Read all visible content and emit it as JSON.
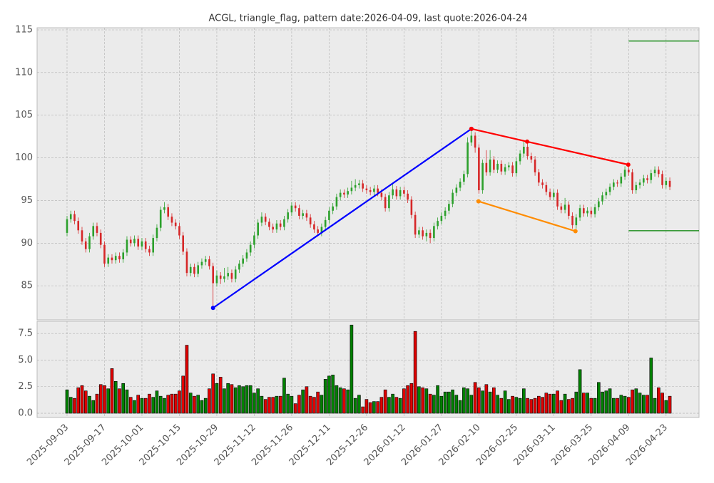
{
  "chart_data": {
    "type": "candlestick",
    "title": "ACGL, triangle_flag, pattern date:2026-04-09, last quote:2026-04-24",
    "categories": [
      "2025-09-03",
      null,
      null,
      null,
      null,
      null,
      null,
      null,
      null,
      null,
      "2025-09-17",
      null,
      null,
      null,
      null,
      null,
      null,
      null,
      null,
      null,
      "2025-10-01",
      null,
      null,
      null,
      null,
      null,
      null,
      null,
      null,
      null,
      "2025-10-15",
      null,
      null,
      null,
      null,
      null,
      null,
      null,
      null,
      null,
      "2025-10-29",
      null,
      null,
      null,
      null,
      null,
      null,
      null,
      null,
      null,
      "2025-11-12",
      null,
      null,
      null,
      null,
      null,
      null,
      null,
      null,
      null,
      "2025-11-26",
      null,
      null,
      null,
      null,
      null,
      null,
      null,
      null,
      null,
      "2025-12-11",
      null,
      null,
      null,
      null,
      null,
      null,
      null,
      null,
      null,
      "2025-12-26",
      null,
      null,
      null,
      null,
      null,
      null,
      null,
      null,
      null,
      "2026-01-12",
      null,
      null,
      null,
      null,
      null,
      null,
      null,
      null,
      null,
      "2026-01-27",
      null,
      null,
      null,
      null,
      null,
      null,
      null,
      null,
      null,
      "2026-02-10",
      null,
      null,
      null,
      null,
      null,
      null,
      null,
      null,
      null,
      "2026-02-25",
      null,
      null,
      null,
      null,
      null,
      null,
      null,
      null,
      null,
      "2026-03-11",
      null,
      null,
      null,
      null,
      null,
      null,
      null,
      null,
      null,
      "2026-03-25",
      null,
      null,
      null,
      null,
      null,
      null,
      null,
      null,
      null,
      "2026-04-09",
      null,
      null,
      null,
      null,
      null,
      null,
      null,
      null,
      null,
      "2026-04-23",
      null
    ],
    "open": [
      91.2,
      92.8,
      93.4,
      92.6,
      91.5,
      90.2,
      89.3,
      90.8,
      92.0,
      91.2,
      89.8,
      87.6,
      88.3,
      88.0,
      88.5,
      88.1,
      88.9,
      90.4,
      90.0,
      90.5,
      89.6,
      90.2,
      89.3,
      88.9,
      90.6,
      91.8,
      93.9,
      94.2,
      93.1,
      92.4,
      92.0,
      90.9,
      89.0,
      86.5,
      87.2,
      86.4,
      87.4,
      87.8,
      88.1,
      87.3,
      85.3,
      86.2,
      85.8,
      86.1,
      86.5,
      85.8,
      86.9,
      87.6,
      88.2,
      88.9,
      89.8,
      90.9,
      92.4,
      93.1,
      92.5,
      91.9,
      91.6,
      92.3,
      91.9,
      92.8,
      93.6,
      94.4,
      94.1,
      93.2,
      93.5,
      93.0,
      92.2,
      91.6,
      91.2,
      91.9,
      92.7,
      93.8,
      94.3,
      95.4,
      95.9,
      95.7,
      96.1,
      96.5,
      96.8,
      97.0,
      96.4,
      96.2,
      96.0,
      96.4,
      95.9,
      95.4,
      94.1,
      95.6,
      96.3,
      95.5,
      96.2,
      95.8,
      95.1,
      93.3,
      91.0,
      91.5,
      90.8,
      91.2,
      90.6,
      92.0,
      92.6,
      93.2,
      93.8,
      94.6,
      95.9,
      96.5,
      97.2,
      98.1,
      101.8,
      102.6,
      101.2,
      96.2,
      99.4,
      98.3,
      99.8,
      98.6,
      99.3,
      98.4,
      98.9,
      99.1,
      98.2,
      99.6,
      100.5,
      101.3,
      100.2,
      99.8,
      98.3,
      97.1,
      96.8,
      96.0,
      95.4,
      95.9,
      94.3,
      93.9,
      94.5,
      93.2,
      92.1,
      93.0,
      94.1,
      93.5,
      93.8,
      93.4,
      94.2,
      94.9,
      95.6,
      96.0,
      96.6,
      97.1,
      97.0,
      97.8,
      98.6,
      98.3,
      96.2,
      96.8,
      97.1,
      97.6,
      97.4,
      98.2,
      98.6,
      98.1,
      96.8,
      97.3
    ],
    "high": [
      93.2,
      93.8,
      93.8,
      93.0,
      91.9,
      90.6,
      91.2,
      92.4,
      92.4,
      91.6,
      90.2,
      88.7,
      88.7,
      88.9,
      88.9,
      89.3,
      90.8,
      90.8,
      90.9,
      90.9,
      90.6,
      90.6,
      89.7,
      91.0,
      92.2,
      94.3,
      94.8,
      94.6,
      93.5,
      92.8,
      92.4,
      91.3,
      89.4,
      87.6,
      87.6,
      87.8,
      88.2,
      88.5,
      88.5,
      87.7,
      86.8,
      86.6,
      87.1,
      87.2,
      86.9,
      87.3,
      88.0,
      88.6,
      89.3,
      90.2,
      91.3,
      92.8,
      93.6,
      93.5,
      92.9,
      92.3,
      92.7,
      92.7,
      93.2,
      94.0,
      94.8,
      94.8,
      94.5,
      93.9,
      93.9,
      93.4,
      92.6,
      92.0,
      92.3,
      93.1,
      94.2,
      94.7,
      95.8,
      96.3,
      96.3,
      96.5,
      97.3,
      97.5,
      97.4,
      97.4,
      96.8,
      96.6,
      96.8,
      96.8,
      96.3,
      95.8,
      96.0,
      96.9,
      96.7,
      96.6,
      96.6,
      96.2,
      95.5,
      93.7,
      91.9,
      91.9,
      91.6,
      91.6,
      92.4,
      93.0,
      93.6,
      94.2,
      95.0,
      96.3,
      96.9,
      97.6,
      98.5,
      102.4,
      103.4,
      103.0,
      101.6,
      99.8,
      100.9,
      100.9,
      100.2,
      99.7,
      99.7,
      99.3,
      99.5,
      99.5,
      100.0,
      100.9,
      101.9,
      101.7,
      100.6,
      100.2,
      98.7,
      97.5,
      97.2,
      96.4,
      96.3,
      96.3,
      94.7,
      95.3,
      94.9,
      93.6,
      93.4,
      94.5,
      94.5,
      94.2,
      94.2,
      94.6,
      95.3,
      96.0,
      96.4,
      97.0,
      97.5,
      97.4,
      98.2,
      99.0,
      99.0,
      98.7,
      97.2,
      97.5,
      98.0,
      98.0,
      98.6,
      99.0,
      99.0,
      98.5,
      97.7,
      97.7
    ],
    "low": [
      90.8,
      92.4,
      92.2,
      91.1,
      89.8,
      88.9,
      88.9,
      90.4,
      90.8,
      89.4,
      87.2,
      87.2,
      87.6,
      87.6,
      87.7,
      87.7,
      88.5,
      89.6,
      89.6,
      89.2,
      89.2,
      88.9,
      88.5,
      88.5,
      90.2,
      91.4,
      93.5,
      92.7,
      92.0,
      91.6,
      90.5,
      88.6,
      86.1,
      86.1,
      86.0,
      86.0,
      87.0,
      87.4,
      86.9,
      82.4,
      84.9,
      85.2,
      85.4,
      85.7,
      85.4,
      85.4,
      86.5,
      87.2,
      87.8,
      88.5,
      89.4,
      90.5,
      92.0,
      92.1,
      91.5,
      91.2,
      91.2,
      91.5,
      91.5,
      92.4,
      93.2,
      93.7,
      92.8,
      92.8,
      92.6,
      91.8,
      91.2,
      90.8,
      90.8,
      91.5,
      92.3,
      93.4,
      93.9,
      95.0,
      95.3,
      95.3,
      95.7,
      96.1,
      96.4,
      96.0,
      95.8,
      95.6,
      95.6,
      95.5,
      95.0,
      93.7,
      93.7,
      95.2,
      95.1,
      95.1,
      95.4,
      94.7,
      92.9,
      90.6,
      90.6,
      90.4,
      90.2,
      90.0,
      90.2,
      91.6,
      92.2,
      92.8,
      93.4,
      94.2,
      95.5,
      96.1,
      96.8,
      97.7,
      101.4,
      100.6,
      95.8,
      95.8,
      97.9,
      97.9,
      98.2,
      98.2,
      98.0,
      98.0,
      98.5,
      97.8,
      97.8,
      99.2,
      100.1,
      99.8,
      99.4,
      97.9,
      96.7,
      96.4,
      95.6,
      95.0,
      95.0,
      93.9,
      93.5,
      93.5,
      92.8,
      91.7,
      91.7,
      92.6,
      93.1,
      93.1,
      93.0,
      93.0,
      93.8,
      94.5,
      95.2,
      95.6,
      96.2,
      96.6,
      96.6,
      97.4,
      97.9,
      95.8,
      95.8,
      96.4,
      96.7,
      97.0,
      97.0,
      97.8,
      97.7,
      96.4,
      96.4,
      96.2
    ],
    "close": [
      92.8,
      93.4,
      92.6,
      91.5,
      90.2,
      89.3,
      90.8,
      92.0,
      91.2,
      89.8,
      87.6,
      88.3,
      88.0,
      88.5,
      88.1,
      88.9,
      90.4,
      90.0,
      90.5,
      89.6,
      90.2,
      89.3,
      88.9,
      90.6,
      91.8,
      93.9,
      94.2,
      93.1,
      92.4,
      92.0,
      90.9,
      89.0,
      86.5,
      87.2,
      86.4,
      87.4,
      87.8,
      88.1,
      87.3,
      85.3,
      86.2,
      85.8,
      86.1,
      86.5,
      85.8,
      86.9,
      87.6,
      88.2,
      88.9,
      89.8,
      90.9,
      92.4,
      93.1,
      92.5,
      91.9,
      91.6,
      92.3,
      91.9,
      92.8,
      93.6,
      94.4,
      94.1,
      93.2,
      93.5,
      93.0,
      92.2,
      91.6,
      91.2,
      91.9,
      92.7,
      93.8,
      94.3,
      95.4,
      95.9,
      95.7,
      96.1,
      96.5,
      96.8,
      97.0,
      96.4,
      96.2,
      96.0,
      96.4,
      95.9,
      95.4,
      94.1,
      95.6,
      96.3,
      95.5,
      96.2,
      95.8,
      95.1,
      93.3,
      91.0,
      91.5,
      90.8,
      91.2,
      90.6,
      92.0,
      92.6,
      93.2,
      93.8,
      94.6,
      95.9,
      96.5,
      97.2,
      98.1,
      101.8,
      102.6,
      101.2,
      96.2,
      99.4,
      98.3,
      99.8,
      98.6,
      99.3,
      98.4,
      98.9,
      99.1,
      98.2,
      99.6,
      100.5,
      101.3,
      100.2,
      99.8,
      98.3,
      97.1,
      96.8,
      96.0,
      95.4,
      95.9,
      94.3,
      93.9,
      94.5,
      93.2,
      92.1,
      93.0,
      94.1,
      93.5,
      93.8,
      93.4,
      94.2,
      94.9,
      95.6,
      96.0,
      96.6,
      97.1,
      97.0,
      97.8,
      98.6,
      98.3,
      96.2,
      96.8,
      97.1,
      97.6,
      97.4,
      98.2,
      98.6,
      98.1,
      96.8,
      97.3,
      96.6
    ],
    "volume": [
      2.2,
      1.5,
      1.4,
      2.4,
      2.6,
      2.1,
      1.6,
      1.2,
      1.8,
      2.7,
      2.6,
      2.3,
      4.2,
      3.0,
      2.3,
      2.8,
      2.2,
      1.5,
      1.2,
      1.7,
      1.4,
      1.4,
      1.8,
      1.5,
      2.1,
      1.6,
      1.4,
      1.7,
      1.8,
      1.8,
      2.1,
      3.5,
      6.4,
      1.9,
      1.6,
      1.7,
      1.2,
      1.4,
      2.3,
      3.7,
      2.8,
      3.4,
      2.3,
      2.8,
      2.7,
      2.4,
      2.6,
      2.5,
      2.6,
      2.6,
      1.9,
      2.3,
      1.6,
      1.3,
      1.5,
      1.5,
      1.6,
      1.6,
      3.3,
      1.8,
      1.6,
      0.9,
      1.7,
      2.2,
      2.5,
      1.6,
      1.5,
      2.0,
      1.7,
      3.2,
      3.5,
      3.6,
      2.6,
      2.4,
      2.3,
      2.2,
      8.3,
      1.4,
      1.7,
      0.6,
      1.3,
      1.0,
      1.1,
      1.1,
      1.5,
      2.2,
      1.5,
      1.8,
      1.5,
      1.4,
      2.3,
      2.6,
      2.8,
      7.7,
      2.5,
      2.4,
      2.3,
      1.8,
      1.7,
      2.6,
      1.6,
      2.0,
      2.0,
      2.2,
      1.7,
      1.2,
      2.4,
      2.3,
      1.7,
      2.9,
      2.4,
      2.1,
      2.7,
      2.0,
      2.4,
      1.7,
      1.4,
      2.1,
      1.3,
      1.6,
      1.5,
      1.4,
      2.3,
      1.4,
      1.3,
      1.4,
      1.6,
      1.5,
      1.9,
      1.8,
      1.8,
      2.1,
      1.2,
      1.8,
      1.3,
      1.4,
      2.0,
      4.1,
      1.9,
      1.9,
      1.4,
      1.4,
      2.9,
      2.0,
      2.1,
      2.3,
      1.4,
      1.4,
      1.7,
      1.6,
      1.5,
      2.2,
      2.3,
      1.9,
      1.7,
      1.7,
      5.2,
      1.4,
      2.4,
      1.9,
      1.2,
      1.6
    ],
    "up_color": "#2ca02c",
    "down_color": "#d62728",
    "xlim": [
      -8,
      168.8
    ],
    "ylim": [
      81.0,
      115.25
    ],
    "yticks": [
      85,
      90,
      95,
      100,
      105,
      110,
      115
    ],
    "volume_ylim": [
      -0.4,
      8.65
    ],
    "volume_yticks": [
      {
        "value": 0,
        "label": "0.0"
      },
      2.5,
      {
        "value": 5,
        "label": "5.0"
      },
      7.5
    ],
    "grid": true,
    "overlays": [
      {
        "color": "#0000ff",
        "x": [
          39,
          108
        ],
        "y": [
          82.4,
          103.4
        ],
        "markers": true
      },
      {
        "color": "#ff0000",
        "x": [
          108,
          122.9,
          149.9
        ],
        "y": [
          103.4,
          101.9,
          99.2
        ],
        "markers": true
      },
      {
        "color": "#ff8c00",
        "x": [
          109.9,
          135.8
        ],
        "y": [
          94.9,
          91.4
        ],
        "markers": true
      },
      {
        "color": "#008000",
        "x": [
          150,
          168.8
        ],
        "y": [
          113.7,
          113.7
        ],
        "markers": false
      },
      {
        "color": "#008000",
        "x": [
          150,
          168.8
        ],
        "y": [
          91.45,
          91.45
        ],
        "markers": false
      }
    ]
  }
}
